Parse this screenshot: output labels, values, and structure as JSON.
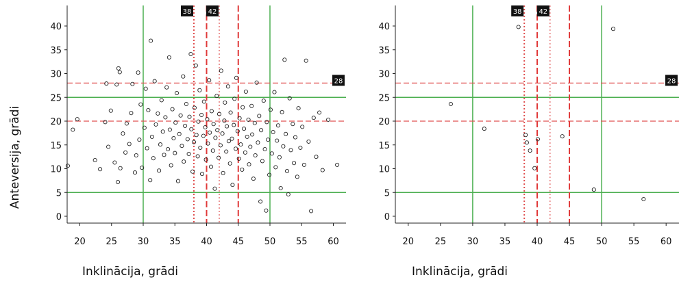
{
  "chart_data": [
    {
      "type": "scatter",
      "xlabel": "Inklinācija, grādi",
      "ylabel": "Anteversija, grādi",
      "xlim": [
        18,
        62
      ],
      "ylim": [
        0,
        45
      ],
      "xticks": [
        20,
        25,
        30,
        35,
        40,
        45,
        50,
        55,
        60
      ],
      "yticks": [
        0,
        5,
        10,
        15,
        20,
        25,
        30,
        35,
        40
      ],
      "grid": false,
      "reference_lines": {
        "green_vertical": [
          30,
          50
        ],
        "green_horizontal": [
          5,
          25
        ],
        "red_dashed_vertical": [
          40,
          45
        ],
        "red_dotted_vertical": [
          38,
          42
        ],
        "red_dashed_horizontal": [
          20,
          28
        ]
      },
      "marked_values": {
        "x": [
          "38",
          "42"
        ],
        "y": [
          "28"
        ]
      },
      "points": [
        [
          18.1,
          10.6
        ],
        [
          18.9,
          18.2
        ],
        [
          19.6,
          20.4
        ],
        [
          22.4,
          11.8
        ],
        [
          23.2,
          9.9
        ],
        [
          24,
          19.8
        ],
        [
          24.2,
          27.9
        ],
        [
          24.5,
          14.6
        ],
        [
          24.9,
          22.2
        ],
        [
          25.5,
          11.3
        ],
        [
          25.8,
          27.7
        ],
        [
          26,
          7.2
        ],
        [
          26.1,
          31.1
        ],
        [
          26.3,
          30.3
        ],
        [
          26.4,
          10.1
        ],
        [
          26.8,
          17.4
        ],
        [
          27.2,
          13.4
        ],
        [
          27.4,
          19.5
        ],
        [
          27.8,
          15.2
        ],
        [
          28.1,
          21.7
        ],
        [
          28.3,
          27.8
        ],
        [
          28.7,
          9.2
        ],
        [
          28.9,
          12.8
        ],
        [
          29.2,
          30.2
        ],
        [
          29.4,
          16.1
        ],
        [
          29.6,
          23.5
        ],
        [
          29.8,
          10.2
        ],
        [
          30.2,
          18.6
        ],
        [
          30.4,
          26.8
        ],
        [
          30.6,
          14.3
        ],
        [
          30.8,
          22.3
        ],
        [
          31.1,
          7.6
        ],
        [
          31.2,
          36.9
        ],
        [
          31.4,
          16.7
        ],
        [
          31.6,
          12.2
        ],
        [
          31.8,
          28.4
        ],
        [
          32,
          19.3
        ],
        [
          32.3,
          21.6
        ],
        [
          32.5,
          9.6
        ],
        [
          32.7,
          15.1
        ],
        [
          32.9,
          24.4
        ],
        [
          33.1,
          17.8
        ],
        [
          33.3,
          12.9
        ],
        [
          33.5,
          20.8
        ],
        [
          33.7,
          27.1
        ],
        [
          33.9,
          14.1
        ],
        [
          34.1,
          33.4
        ],
        [
          34.2,
          18.2
        ],
        [
          34.4,
          10.7
        ],
        [
          34.6,
          22.5
        ],
        [
          34.8,
          16.4
        ],
        [
          35,
          13.3
        ],
        [
          35.1,
          19.7
        ],
        [
          35.3,
          25.9
        ],
        [
          35.5,
          7.4
        ],
        [
          35.7,
          17.3
        ],
        [
          35.9,
          21.2
        ],
        [
          36.1,
          14.8
        ],
        [
          36.3,
          29.4
        ],
        [
          36.4,
          11.5
        ],
        [
          36.6,
          19
        ],
        [
          36.8,
          23.6
        ],
        [
          37,
          16.2
        ],
        [
          37.2,
          13.1
        ],
        [
          37.3,
          20.9
        ],
        [
          37.5,
          34.1
        ],
        [
          37.6,
          18.3
        ],
        [
          37.8,
          9.4
        ],
        [
          38,
          15.6
        ],
        [
          38.1,
          22.8
        ],
        [
          38.3,
          31.7
        ],
        [
          38.4,
          17.1
        ],
        [
          38.6,
          12.6
        ],
        [
          38.7,
          19.9
        ],
        [
          38.9,
          26.5
        ],
        [
          39,
          14.4
        ],
        [
          39.2,
          21.3
        ],
        [
          39.3,
          8.9
        ],
        [
          39.5,
          16.9
        ],
        [
          39.6,
          24.1
        ],
        [
          39.8,
          18.7
        ],
        [
          39.9,
          11.9
        ],
        [
          40.1,
          20.4
        ],
        [
          40.2,
          15.3
        ],
        [
          40.4,
          28.6
        ],
        [
          40.5,
          17.6
        ],
        [
          40.7,
          10.4
        ],
        [
          40.8,
          22.1
        ],
        [
          41,
          13.8
        ],
        [
          41.1,
          19.4
        ],
        [
          41.3,
          5.8
        ],
        [
          41.4,
          16.5
        ],
        [
          41.6,
          25.3
        ],
        [
          41.7,
          18.1
        ],
        [
          41.9,
          12.3
        ],
        [
          42,
          21.5
        ],
        [
          42.2,
          14.9
        ],
        [
          42.3,
          30.6
        ],
        [
          42.5,
          17.4
        ],
        [
          42.6,
          9.1
        ],
        [
          42.8,
          20.1
        ],
        [
          42.9,
          23.9
        ],
        [
          43.1,
          13.6
        ],
        [
          43.2,
          18.9
        ],
        [
          43.4,
          27.3
        ],
        [
          43.5,
          15.8
        ],
        [
          43.7,
          11.1
        ],
        [
          43.8,
          21.8
        ],
        [
          44,
          16.3
        ],
        [
          44.1,
          6.6
        ],
        [
          44.3,
          19.2
        ],
        [
          44.4,
          24.7
        ],
        [
          44.6,
          14.2
        ],
        [
          44.7,
          29.1
        ],
        [
          44.9,
          17.9
        ],
        [
          45.1,
          12.1
        ],
        [
          45.2,
          20.6
        ],
        [
          45.4,
          15.1
        ],
        [
          45.6,
          9.8
        ],
        [
          45.7,
          22.9
        ],
        [
          45.9,
          18.4
        ],
        [
          46.1,
          13.4
        ],
        [
          46.2,
          26.2
        ],
        [
          46.4,
          16.7
        ],
        [
          46.6,
          20.3
        ],
        [
          46.7,
          10.9
        ],
        [
          46.9,
          14.6
        ],
        [
          47.1,
          23.2
        ],
        [
          47.2,
          17.2
        ],
        [
          47.4,
          7.9
        ],
        [
          47.6,
          19.6
        ],
        [
          47.7,
          12.8
        ],
        [
          47.9,
          28.1
        ],
        [
          48.1,
          15.5
        ],
        [
          48.3,
          21.1
        ],
        [
          48.5,
          3.1
        ],
        [
          48.6,
          18.1
        ],
        [
          48.8,
          11.6
        ],
        [
          49,
          24.3
        ],
        [
          49.2,
          14.1
        ],
        [
          49.4,
          1.2
        ],
        [
          49.5,
          19.8
        ],
        [
          49.7,
          16.1
        ],
        [
          49.9,
          8.7
        ],
        [
          50.1,
          22.4
        ],
        [
          50.3,
          13.2
        ],
        [
          50.5,
          17.7
        ],
        [
          50.7,
          26.1
        ],
        [
          50.9,
          10.3
        ],
        [
          51.1,
          15.9
        ],
        [
          51.3,
          19.1
        ],
        [
          51.5,
          12.4
        ],
        [
          51.7,
          5.9
        ],
        [
          51.9,
          21.9
        ],
        [
          52.1,
          14.7
        ],
        [
          52.3,
          32.9
        ],
        [
          52.5,
          17.3
        ],
        [
          52.7,
          9.5
        ],
        [
          52.9,
          4.6
        ],
        [
          53.1,
          24.8
        ],
        [
          53.3,
          13.9
        ],
        [
          53.6,
          19.4
        ],
        [
          53.8,
          11.2
        ],
        [
          54,
          16.6
        ],
        [
          54.3,
          8.3
        ],
        [
          54.5,
          22.7
        ],
        [
          54.8,
          14.4
        ],
        [
          55.1,
          18.8
        ],
        [
          55.4,
          10.8
        ],
        [
          55.7,
          32.7
        ],
        [
          56.1,
          15.7
        ],
        [
          56.5,
          1.1
        ],
        [
          56.9,
          20.7
        ],
        [
          57.3,
          12.5
        ],
        [
          57.8,
          21.8
        ],
        [
          58.3,
          9.7
        ],
        [
          59.2,
          20.3
        ],
        [
          60.6,
          10.8
        ]
      ]
    },
    {
      "type": "scatter",
      "xlabel": "Inklinācija, grādi",
      "ylabel": "",
      "xlim": [
        18,
        62
      ],
      "ylim": [
        0,
        45
      ],
      "xticks": [
        20,
        25,
        30,
        35,
        40,
        45,
        50,
        55,
        60
      ],
      "yticks": [
        0,
        5,
        10,
        15,
        20,
        25,
        30,
        35,
        40
      ],
      "grid": false,
      "reference_lines": {
        "green_vertical": [
          30,
          50
        ],
        "green_horizontal": [
          5,
          25
        ],
        "red_dashed_vertical": [
          40,
          45
        ],
        "red_dotted_vertical": [
          38,
          42
        ],
        "red_dashed_horizontal": [
          20,
          28
        ]
      },
      "marked_values": {
        "x": [
          "38",
          "42"
        ],
        "y": [
          "28"
        ]
      },
      "points": [
        [
          26.6,
          23.6
        ],
        [
          31.8,
          18.4
        ],
        [
          37.1,
          39.8
        ],
        [
          38.2,
          17.1
        ],
        [
          38.4,
          15.5
        ],
        [
          38.9,
          13.8
        ],
        [
          39.6,
          10.1
        ],
        [
          40.1,
          16.2
        ],
        [
          43.9,
          16.8
        ],
        [
          48.8,
          5.6
        ],
        [
          51.8,
          39.4
        ],
        [
          56.5,
          3.6
        ]
      ]
    }
  ]
}
